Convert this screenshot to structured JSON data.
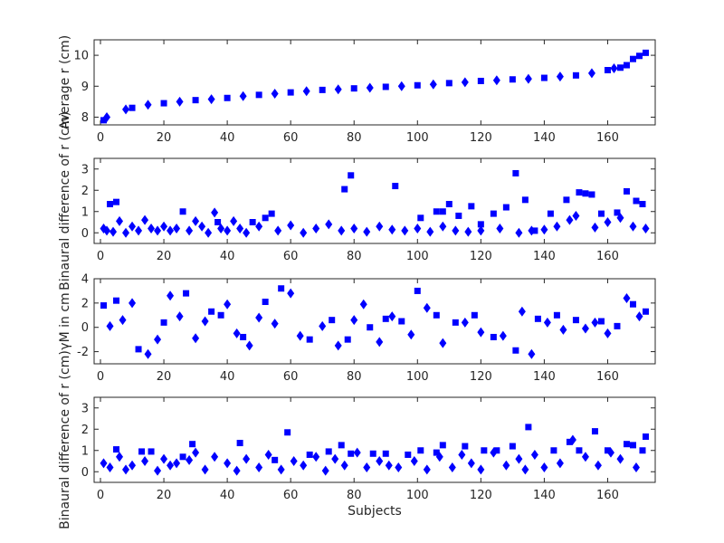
{
  "figure": {
    "background": "#ffffff"
  },
  "style": {
    "marker_color": "#0000ff",
    "axis_color": "#262626"
  },
  "chart_data": [
    {
      "type": "scatter",
      "ylabel": "Average r (cm)",
      "xlabel": "",
      "xlim": [
        -2,
        175
      ],
      "ylim": [
        7.75,
        10.5
      ],
      "xticks": [
        0,
        20,
        40,
        60,
        80,
        100,
        120,
        140,
        160
      ],
      "yticks": [
        8,
        9,
        10
      ],
      "series": [
        {
          "marker": "square",
          "x": [
            1,
            10,
            20,
            30,
            40,
            50,
            60,
            70,
            80,
            90,
            100,
            110,
            120,
            130,
            140,
            150,
            160,
            164,
            166,
            168,
            170,
            172
          ],
          "y": [
            7.9,
            8.3,
            8.45,
            8.55,
            8.62,
            8.72,
            8.8,
            8.88,
            8.93,
            8.98,
            9.03,
            9.1,
            9.17,
            9.22,
            9.27,
            9.35,
            9.52,
            9.6,
            9.68,
            9.88,
            9.98,
            10.08
          ]
        },
        {
          "marker": "diamond",
          "x": [
            2,
            8,
            15,
            25,
            35,
            45,
            55,
            65,
            75,
            85,
            95,
            105,
            115,
            125,
            135,
            145,
            155,
            162
          ],
          "y": [
            8.0,
            8.25,
            8.4,
            8.5,
            8.58,
            8.68,
            8.76,
            8.84,
            8.9,
            8.95,
            9.0,
            9.06,
            9.13,
            9.19,
            9.24,
            9.31,
            9.42,
            9.58
          ]
        }
      ]
    },
    {
      "type": "scatter",
      "ylabel": "Binaural difference of r (cm)",
      "xlabel": "",
      "xlim": [
        -2,
        175
      ],
      "ylim": [
        -0.5,
        3.5
      ],
      "xticks": [
        0,
        20,
        40,
        60,
        80,
        100,
        120,
        140,
        160
      ],
      "yticks": [
        0,
        1,
        2,
        3
      ],
      "series": [
        {
          "marker": "square",
          "x": [
            3,
            5,
            26,
            37,
            48,
            52,
            54,
            77,
            79,
            93,
            101,
            106,
            108,
            110,
            113,
            117,
            120,
            124,
            128,
            131,
            134,
            137,
            142,
            147,
            151,
            153,
            155,
            158,
            163,
            166,
            169,
            171
          ],
          "y": [
            1.35,
            1.45,
            1.0,
            0.5,
            0.5,
            0.7,
            0.9,
            2.05,
            2.7,
            2.2,
            0.7,
            1.0,
            1.0,
            1.35,
            0.8,
            1.25,
            0.4,
            0.9,
            1.2,
            2.8,
            1.55,
            0.1,
            0.9,
            1.55,
            1.9,
            1.85,
            1.8,
            0.9,
            0.95,
            1.95,
            1.5,
            1.35
          ]
        },
        {
          "marker": "diamond",
          "x": [
            1,
            2,
            4,
            6,
            8,
            10,
            12,
            14,
            16,
            18,
            20,
            22,
            24,
            28,
            30,
            32,
            34,
            36,
            38,
            40,
            42,
            44,
            46,
            50,
            56,
            60,
            64,
            68,
            72,
            76,
            80,
            84,
            88,
            92,
            96,
            100,
            104,
            108,
            112,
            116,
            120,
            126,
            132,
            136,
            140,
            144,
            148,
            150,
            156,
            160,
            164,
            168,
            172
          ],
          "y": [
            0.2,
            0.1,
            0.05,
            0.55,
            0.0,
            0.3,
            0.1,
            0.6,
            0.2,
            0.1,
            0.3,
            0.1,
            0.2,
            0.1,
            0.55,
            0.3,
            0.0,
            0.95,
            0.2,
            0.1,
            0.55,
            0.2,
            0.0,
            0.3,
            0.1,
            0.35,
            0.0,
            0.2,
            0.4,
            0.1,
            0.2,
            0.05,
            0.3,
            0.15,
            0.1,
            0.2,
            0.05,
            0.3,
            0.1,
            0.05,
            0.1,
            0.2,
            0.0,
            0.1,
            0.15,
            0.3,
            0.6,
            0.8,
            0.25,
            0.5,
            0.7,
            0.3,
            0.2
          ]
        }
      ]
    },
    {
      "type": "scatter",
      "ylabel": "γM in cm",
      "xlabel": "",
      "xlim": [
        -2,
        175
      ],
      "ylim": [
        -3,
        4
      ],
      "xticks": [
        0,
        20,
        40,
        60,
        80,
        100,
        120,
        140,
        160
      ],
      "yticks": [
        -2,
        0,
        2,
        4
      ],
      "series": [
        {
          "marker": "square",
          "x": [
            1,
            5,
            12,
            20,
            27,
            35,
            38,
            45,
            52,
            57,
            66,
            73,
            78,
            85,
            90,
            95,
            100,
            106,
            112,
            118,
            124,
            131,
            138,
            144,
            150,
            158,
            163,
            168,
            172
          ],
          "y": [
            1.8,
            2.2,
            -1.8,
            0.4,
            2.8,
            1.3,
            1.0,
            -0.8,
            2.1,
            3.2,
            -1.0,
            0.6,
            -1.0,
            0.0,
            0.7,
            0.5,
            3.0,
            1.0,
            0.4,
            1.0,
            -0.8,
            -1.9,
            0.7,
            1.0,
            0.6,
            0.5,
            0.1,
            1.9,
            1.3
          ]
        },
        {
          "marker": "diamond",
          "x": [
            3,
            7,
            10,
            15,
            18,
            22,
            25,
            30,
            33,
            40,
            43,
            47,
            50,
            55,
            60,
            63,
            70,
            75,
            80,
            83,
            88,
            92,
            98,
            103,
            108,
            115,
            120,
            127,
            133,
            136,
            141,
            146,
            153,
            156,
            160,
            166,
            170
          ],
          "y": [
            0.1,
            0.6,
            2.0,
            -2.2,
            -1.0,
            2.6,
            0.9,
            -0.9,
            0.5,
            1.9,
            -0.5,
            -1.5,
            0.8,
            0.3,
            2.8,
            -0.7,
            0.1,
            -1.5,
            0.6,
            1.9,
            -1.2,
            0.9,
            -0.6,
            1.6,
            -1.3,
            0.4,
            -0.4,
            -0.7,
            1.3,
            -2.2,
            0.4,
            -0.2,
            -0.1,
            0.4,
            -0.5,
            2.4,
            0.9
          ]
        }
      ]
    },
    {
      "type": "scatter",
      "ylabel": "Binaural difference of r (cm)",
      "xlabel": "Subjects",
      "xlim": [
        -2,
        175
      ],
      "ylim": [
        -0.5,
        3.5
      ],
      "xticks": [
        0,
        20,
        40,
        60,
        80,
        100,
        120,
        140,
        160
      ],
      "yticks": [
        0,
        1,
        2,
        3
      ],
      "series": [
        {
          "marker": "square",
          "x": [
            5,
            13,
            16,
            26,
            29,
            44,
            55,
            59,
            66,
            72,
            76,
            79,
            86,
            90,
            97,
            101,
            106,
            108,
            115,
            121,
            125,
            130,
            135,
            143,
            148,
            151,
            156,
            160,
            166,
            168,
            171,
            172
          ],
          "y": [
            1.05,
            0.95,
            0.95,
            0.7,
            1.3,
            1.35,
            0.55,
            1.85,
            0.8,
            0.95,
            1.25,
            0.85,
            0.85,
            0.85,
            0.8,
            1.0,
            0.9,
            1.25,
            1.2,
            1.0,
            1.0,
            1.2,
            2.1,
            1.0,
            1.4,
            1.0,
            1.9,
            1.0,
            1.3,
            1.25,
            1.0,
            1.65
          ]
        },
        {
          "marker": "diamond",
          "x": [
            1,
            3,
            6,
            8,
            10,
            14,
            18,
            20,
            22,
            24,
            28,
            30,
            33,
            36,
            40,
            43,
            46,
            50,
            53,
            57,
            61,
            64,
            68,
            71,
            74,
            77,
            81,
            84,
            88,
            91,
            94,
            99,
            103,
            107,
            111,
            114,
            117,
            120,
            124,
            128,
            132,
            134,
            137,
            140,
            145,
            149,
            153,
            157,
            161,
            164,
            169
          ],
          "y": [
            0.4,
            0.2,
            0.7,
            0.1,
            0.3,
            0.5,
            0.05,
            0.6,
            0.3,
            0.4,
            0.55,
            0.9,
            0.1,
            0.7,
            0.4,
            0.05,
            0.6,
            0.2,
            0.8,
            0.1,
            0.5,
            0.3,
            0.7,
            0.05,
            0.6,
            0.3,
            0.9,
            0.2,
            0.5,
            0.3,
            0.2,
            0.5,
            0.1,
            0.7,
            0.2,
            0.8,
            0.4,
            0.1,
            0.9,
            0.3,
            0.6,
            0.1,
            0.8,
            0.2,
            0.4,
            1.5,
            0.7,
            0.3,
            0.9,
            0.6,
            0.2
          ]
        }
      ]
    }
  ]
}
